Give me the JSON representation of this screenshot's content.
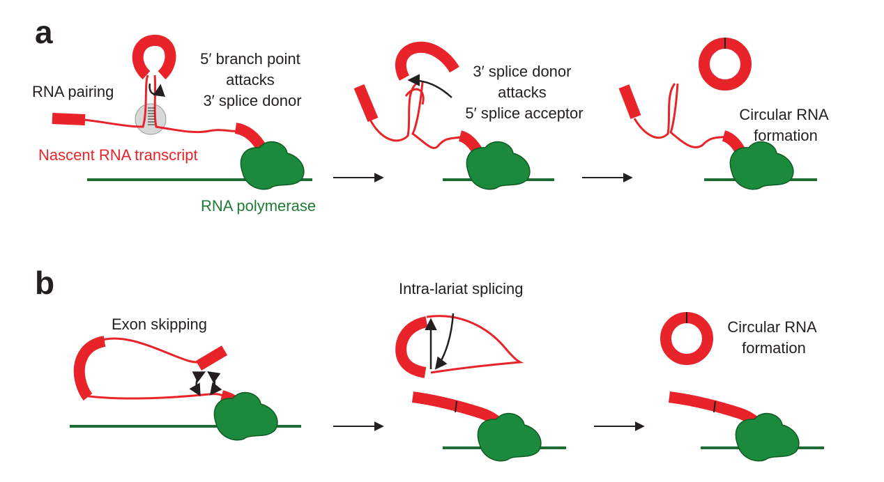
{
  "colors": {
    "rna": "#e8242a",
    "polymerase": "#1b8a3c",
    "dna": "#1e6b35",
    "arrow": "#231f20",
    "highlight": "#c8c8c8"
  },
  "panel_a": {
    "letter": "a",
    "rna_pairing": "RNA pairing",
    "nascent": "Nascent RNA transcript",
    "polymerase": "RNA polymerase",
    "step1_lines": [
      "5′ branch point",
      "attacks",
      "3′ splice donor"
    ],
    "step2_lines": [
      "3′ splice donor",
      "attacks",
      "5′ splice acceptor"
    ],
    "result_lines": [
      "Circular RNA",
      "formation"
    ]
  },
  "panel_b": {
    "letter": "b",
    "exon_skipping": "Exon skipping",
    "intra_lariat": "Intra-lariat splicing",
    "result_lines": [
      "Circular RNA",
      "formation"
    ]
  }
}
